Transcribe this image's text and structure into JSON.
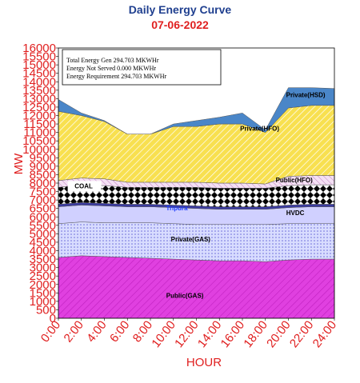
{
  "header": {
    "title": "Daily Energy Curve",
    "date": "07-06-2022"
  },
  "chart_data": {
    "type": "area",
    "title": "Daily Energy Curve",
    "subtitle": "07-06-2022",
    "xlabel": "HOUR",
    "ylabel": "MW",
    "ylim": [
      0,
      16000
    ],
    "xlim": [
      0,
      24
    ],
    "grid": false,
    "legend": "none",
    "y_ticks": [
      "0",
      "500",
      "1000",
      "1500",
      "2000",
      "2500",
      "3000",
      "3500",
      "4000",
      "4500",
      "5000",
      "5500",
      "6000",
      "6500",
      "7000",
      "7500",
      "8000",
      "8500",
      "9000",
      "9500",
      "10000",
      "10500",
      "11000",
      "11500",
      "12000",
      "12500",
      "13000",
      "13500",
      "14000",
      "14500",
      "15000",
      "15500",
      "16000"
    ],
    "x_ticks": [
      "0:00",
      "2:00",
      "4:00",
      "6:00",
      "8:00",
      "10:00",
      "12:00",
      "14:00",
      "16:00",
      "18:00",
      "20:00",
      "22:00",
      "24:00"
    ],
    "x": [
      0,
      2,
      4,
      6,
      8,
      10,
      12,
      14,
      16,
      18,
      20,
      22,
      24
    ],
    "annotations": [
      "Total Energy Gen 294.703 MKWHr",
      "Energy Not Served   0.000 MKWHr",
      "Energy Requirement      294.703 MKWHr"
    ],
    "series": [
      {
        "name": "Public(GAS)",
        "color": "#e040e0",
        "values": [
          3600,
          3700,
          3650,
          3600,
          3550,
          3500,
          3450,
          3400,
          3400,
          3350,
          3450,
          3500,
          3500
        ]
      },
      {
        "name": "Private(GAS)",
        "color": "#b8c4ff",
        "values": [
          2000,
          2000,
          2000,
          2050,
          2100,
          2100,
          2100,
          2150,
          2150,
          2200,
          2150,
          2100,
          2100
        ]
      },
      {
        "name": "HVDC",
        "color": "#d8d8ff",
        "values": [
          1000,
          1000,
          1000,
          950,
          950,
          950,
          950,
          900,
          900,
          900,
          950,
          1000,
          1000
        ]
      },
      {
        "name": "Tripura",
        "color": "#3a3aa0",
        "values": [
          150,
          150,
          150,
          150,
          150,
          150,
          150,
          150,
          150,
          150,
          150,
          150,
          150
        ]
      },
      {
        "name": "COAL",
        "color": "#000000",
        "values": [
          1000,
          1050,
          1050,
          1000,
          1000,
          1050,
          1100,
          1100,
          1100,
          1100,
          1150,
          1150,
          1150
        ]
      },
      {
        "name": "Public(HFO)",
        "color": "#e8c8e8",
        "values": [
          400,
          400,
          400,
          300,
          300,
          300,
          300,
          300,
          300,
          250,
          550,
          550,
          550
        ]
      },
      {
        "name": "Private(HFO)",
        "color": "#f8e050",
        "values": [
          4100,
          3700,
          3400,
          2850,
          2850,
          3300,
          3300,
          3500,
          3500,
          3050,
          4050,
          4150,
          4150
        ]
      },
      {
        "name": "Private(HSD)",
        "color": "#4a86c8",
        "values": [
          700,
          150,
          50,
          0,
          0,
          150,
          350,
          400,
          650,
          150,
          1200,
          1050,
          1000
        ]
      }
    ],
    "inner_labels": [
      {
        "text": "Private(HSD)",
        "color": "#000000"
      },
      {
        "text": "Private(HFO)",
        "color": "#000000"
      },
      {
        "text": "Public(HFO)",
        "color": "#000000"
      },
      {
        "text": "COAL",
        "color": "#000000"
      },
      {
        "text": "Tripura",
        "color": "#2040ff"
      },
      {
        "text": "HVDC",
        "color": "#000000"
      },
      {
        "text": "Private(GAS)",
        "color": "#000000"
      },
      {
        "text": "Public(GAS)",
        "color": "#000000"
      }
    ]
  },
  "colors": {
    "axis_text": "#e02020",
    "title_blue": "#1f3f8f",
    "title_red": "#e02020"
  }
}
